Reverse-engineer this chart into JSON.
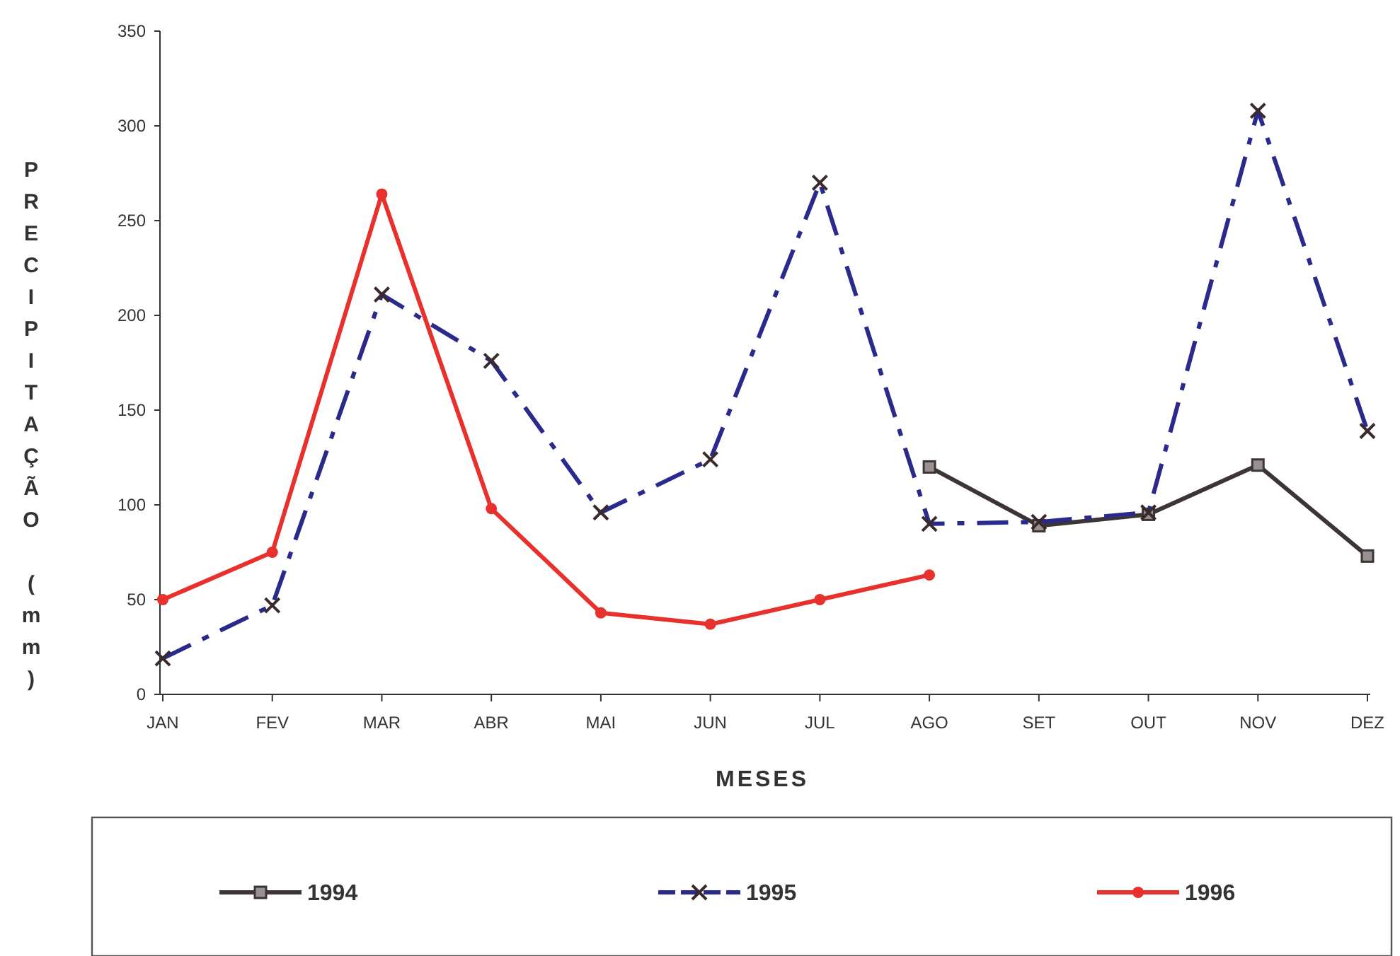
{
  "chart_data": {
    "type": "line",
    "xlabel": "MESES",
    "ylabel": "PRECIPITAÇÃO (mm)",
    "categories": [
      "JAN",
      "FEV",
      "MAR",
      "ABR",
      "MAI",
      "JUN",
      "JUL",
      "AGO",
      "SET",
      "OUT",
      "NOV",
      "DEZ"
    ],
    "ylim": [
      0,
      350
    ],
    "yticks": [
      0,
      50,
      100,
      150,
      200,
      250,
      300,
      350
    ],
    "grid": false,
    "legend": "bottom",
    "series": [
      {
        "name": "1994",
        "color": "#3d3535",
        "marker": "square",
        "line_style": "solid",
        "values": [
          null,
          null,
          null,
          null,
          null,
          null,
          null,
          120,
          89,
          95,
          121,
          73
        ]
      },
      {
        "name": "1995",
        "color": "#2a2a8c",
        "marker": "cross",
        "line_style": "dashed",
        "values": [
          19,
          47,
          211,
          176,
          96,
          124,
          270,
          90,
          91,
          96,
          308,
          139
        ]
      },
      {
        "name": "1996",
        "color": "#e8302c",
        "marker": "circle",
        "line_style": "solid",
        "values": [
          50,
          75,
          264,
          98,
          43,
          37,
          50,
          63,
          null,
          null,
          null,
          null
        ]
      }
    ]
  }
}
